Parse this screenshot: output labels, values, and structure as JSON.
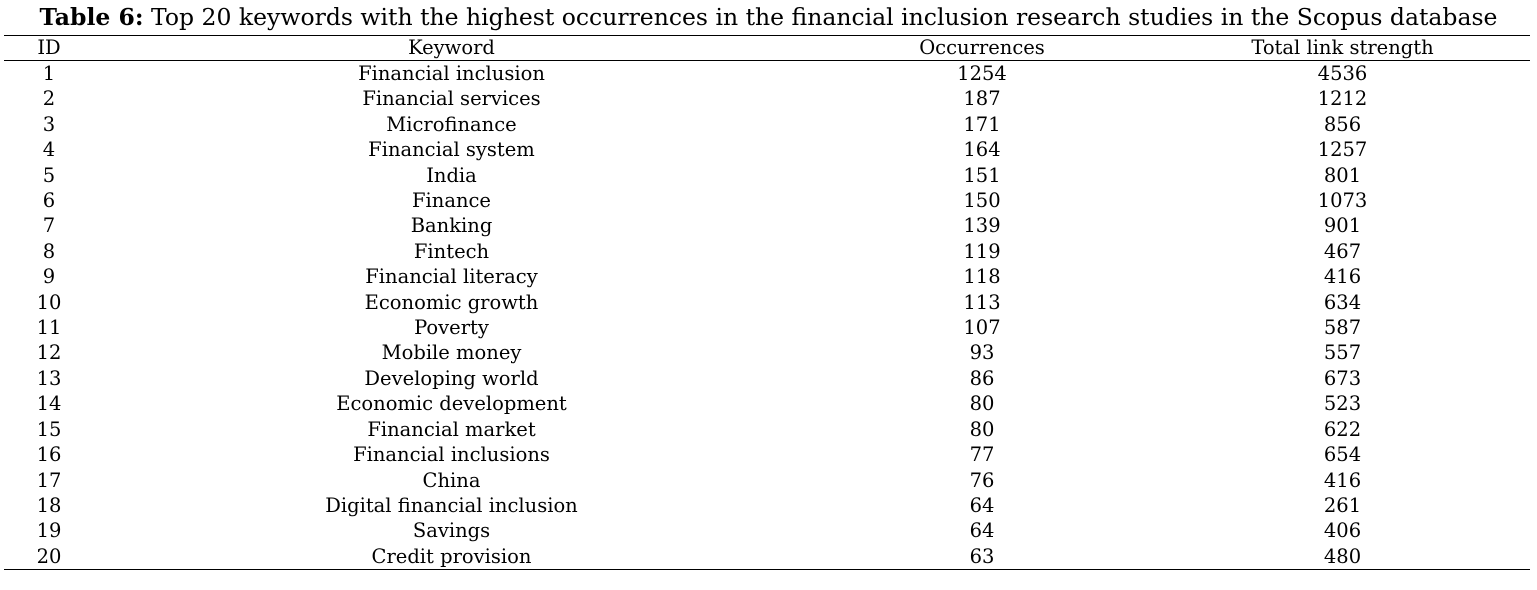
{
  "caption": {
    "label": "Table 6:",
    "text": "Top 20 keywords with the highest occurrences in the financial inclusion research studies in the Scopus database"
  },
  "table": {
    "headers": [
      "ID",
      "Keyword",
      "Occurrences",
      "Total link strength"
    ],
    "rows": [
      [
        "1",
        "Financial inclusion",
        "1254",
        "4536"
      ],
      [
        "2",
        "Financial services",
        "187",
        "1212"
      ],
      [
        "3",
        "Microfinance",
        "171",
        "856"
      ],
      [
        "4",
        "Financial system",
        "164",
        "1257"
      ],
      [
        "5",
        "India",
        "151",
        "801"
      ],
      [
        "6",
        "Finance",
        "150",
        "1073"
      ],
      [
        "7",
        "Banking",
        "139",
        "901"
      ],
      [
        "8",
        "Fintech",
        "119",
        "467"
      ],
      [
        "9",
        "Financial literacy",
        "118",
        "416"
      ],
      [
        "10",
        "Economic growth",
        "113",
        "634"
      ],
      [
        "11",
        "Poverty",
        "107",
        "587"
      ],
      [
        "12",
        "Mobile money",
        "93",
        "557"
      ],
      [
        "13",
        "Developing world",
        "86",
        "673"
      ],
      [
        "14",
        "Economic development",
        "80",
        "523"
      ],
      [
        "15",
        "Financial market",
        "80",
        "622"
      ],
      [
        "16",
        "Financial inclusions",
        "77",
        "654"
      ],
      [
        "17",
        "China",
        "76",
        "416"
      ],
      [
        "18",
        "Digital financial inclusion",
        "64",
        "261"
      ],
      [
        "19",
        "Savings",
        "64",
        "406"
      ],
      [
        "20",
        "Credit provision",
        "63",
        "480"
      ]
    ]
  }
}
